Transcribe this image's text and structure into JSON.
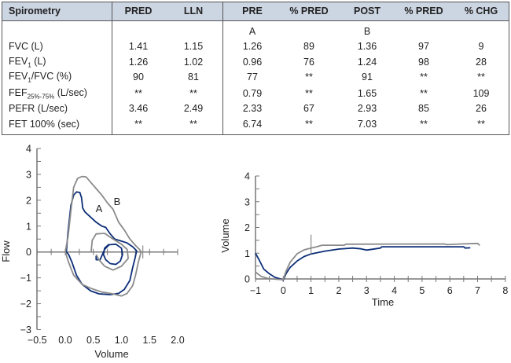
{
  "table": {
    "headers": [
      "Spirometry",
      "PRED",
      "LLN",
      "PRE",
      "% PRED",
      "POST",
      "% PRED",
      "% CHG"
    ],
    "curve_labels": {
      "pre": "A",
      "post": "B"
    },
    "rows": [
      {
        "label": "FVC (L)",
        "values": [
          "1.41",
          "1.15",
          "1.26",
          "89",
          "1.36",
          "97",
          "9"
        ]
      },
      {
        "label_main": "FEV",
        "label_sub": "1",
        "label_rest": " (L)",
        "values": [
          "1.26",
          "1.02",
          "0.96",
          "76",
          "1.24",
          "98",
          "28"
        ]
      },
      {
        "label_main": "FEV",
        "label_sub": "1",
        "label_rest": "/FVC (%)",
        "values": [
          "90",
          "81",
          "77",
          "**",
          "91",
          "**",
          "**"
        ]
      },
      {
        "label_main": "FEF",
        "label_sub": "25%-75%",
        "label_rest": " (L/sec)",
        "values": [
          "**",
          "**",
          "0.79",
          "**",
          "1.65",
          "**",
          "109"
        ]
      },
      {
        "label": "PEFR (L/sec)",
        "values": [
          "3.46",
          "2.49",
          "2.33",
          "67",
          "2.93",
          "85",
          "26"
        ]
      },
      {
        "label": "FET 100% (sec)",
        "values": [
          "**",
          "**",
          "6.74",
          "**",
          "7.03",
          "**",
          "**"
        ]
      }
    ]
  },
  "chart_data": [
    {
      "type": "line",
      "xlabel": "Volume",
      "ylabel": "Flow",
      "xlim": [
        -0.5,
        2.0
      ],
      "ylim": [
        -3,
        4
      ],
      "xticks": [
        "-0.5",
        "0.0",
        "0.5",
        "1.0",
        "1.5",
        "2.0"
      ],
      "yticks": [
        "-3",
        "-2",
        "-1",
        "0",
        "1",
        "2",
        "3",
        "4"
      ],
      "annotations": [
        "A",
        "B"
      ],
      "series": [
        {
          "name": "A",
          "color": "#0d2e78",
          "points": [
            [
              0.02,
              0
            ],
            [
              0.05,
              0.8
            ],
            [
              0.1,
              1.8
            ],
            [
              0.15,
              2.2
            ],
            [
              0.2,
              2.32
            ],
            [
              0.26,
              2.3
            ],
            [
              0.29,
              2.1
            ],
            [
              0.31,
              1.7
            ],
            [
              0.35,
              1.55
            ],
            [
              0.45,
              1.35
            ],
            [
              0.55,
              1.15
            ],
            [
              0.65,
              1.0
            ],
            [
              0.72,
              0.95
            ],
            [
              0.8,
              0.7
            ],
            [
              0.88,
              0.5
            ],
            [
              1.0,
              0.42
            ],
            [
              1.1,
              0.35
            ],
            [
              1.2,
              0.2
            ],
            [
              1.27,
              0.05
            ],
            [
              1.24,
              -0.25
            ],
            [
              1.2,
              -0.6
            ],
            [
              1.15,
              -1.1
            ],
            [
              1.05,
              -1.45
            ],
            [
              0.95,
              -1.6
            ],
            [
              0.8,
              -1.65
            ],
            [
              0.6,
              -1.62
            ],
            [
              0.45,
              -1.5
            ],
            [
              0.3,
              -1.25
            ],
            [
              0.2,
              -0.9
            ],
            [
              0.12,
              -0.4
            ],
            [
              0.06,
              -0.1
            ],
            [
              0.02,
              0
            ]
          ]
        },
        {
          "name": "A-tidal",
          "color": "#0d2e78",
          "points": [
            [
              0.55,
              -0.15
            ],
            [
              0.55,
              -0.3
            ],
            [
              0.62,
              -0.3
            ],
            [
              0.66,
              -0.1
            ],
            [
              0.7,
              0.1
            ],
            [
              0.78,
              0.28
            ],
            [
              0.9,
              0.3
            ],
            [
              1.0,
              0.15
            ],
            [
              1.02,
              -0.1
            ],
            [
              0.98,
              -0.35
            ],
            [
              0.9,
              -0.48
            ],
            [
              0.8,
              -0.45
            ],
            [
              0.72,
              -0.3
            ],
            [
              0.68,
              -0.1
            ],
            [
              0.7,
              0.15
            ],
            [
              0.78,
              0.3
            ]
          ]
        },
        {
          "name": "B",
          "color": "#8a8a8a",
          "points": [
            [
              0.0,
              0
            ],
            [
              0.05,
              0.6
            ],
            [
              0.1,
              1.6
            ],
            [
              0.15,
              2.5
            ],
            [
              0.22,
              2.85
            ],
            [
              0.3,
              2.92
            ],
            [
              0.37,
              2.9
            ],
            [
              0.45,
              2.7
            ],
            [
              0.55,
              2.45
            ],
            [
              0.65,
              2.2
            ],
            [
              0.75,
              1.9
            ],
            [
              0.85,
              1.65
            ],
            [
              0.95,
              1.15
            ],
            [
              1.05,
              0.85
            ],
            [
              1.15,
              0.5
            ],
            [
              1.25,
              0.25
            ],
            [
              1.32,
              0.1
            ],
            [
              1.35,
              0
            ],
            [
              1.3,
              -0.4
            ],
            [
              1.25,
              -0.9
            ],
            [
              1.2,
              -1.3
            ],
            [
              1.1,
              -1.6
            ],
            [
              1.0,
              -1.7
            ],
            [
              0.85,
              -1.62
            ],
            [
              0.65,
              -1.55
            ],
            [
              0.45,
              -1.4
            ],
            [
              0.3,
              -1.25
            ],
            [
              0.15,
              -0.9
            ],
            [
              0.06,
              -0.4
            ],
            [
              0.0,
              0
            ]
          ]
        },
        {
          "name": "B-tidal",
          "color": "#8a8a8a",
          "points": [
            [
              0.46,
              0
            ],
            [
              0.48,
              0.45
            ],
            [
              0.55,
              0.7
            ],
            [
              0.7,
              0.72
            ],
            [
              0.85,
              0.5
            ],
            [
              1.0,
              0.3
            ],
            [
              1.1,
              0.1
            ],
            [
              1.12,
              -0.25
            ],
            [
              1.0,
              -0.55
            ],
            [
              0.85,
              -0.7
            ],
            [
              0.7,
              -0.55
            ],
            [
              0.6,
              -0.3
            ],
            [
              0.55,
              -0.1
            ]
          ]
        }
      ]
    },
    {
      "type": "line",
      "xlabel": "Time",
      "ylabel": "Volume",
      "xlim": [
        -1,
        8
      ],
      "ylim": [
        0,
        4
      ],
      "xticks": [
        "−1",
        "0",
        "1",
        "2",
        "3",
        "4",
        "5",
        "6",
        "7",
        "8"
      ],
      "yticks": [
        "0",
        "1",
        "2",
        "3",
        "4"
      ],
      "series": [
        {
          "name": "A",
          "color": "#0d2e78",
          "points": [
            [
              -1,
              1.0
            ],
            [
              -0.85,
              0.7
            ],
            [
              -0.7,
              0.38
            ],
            [
              -0.5,
              0.2
            ],
            [
              -0.3,
              0.06
            ],
            [
              -0.1,
              0
            ],
            [
              0,
              -0.05
            ],
            [
              0.1,
              0.2
            ],
            [
              0.25,
              0.45
            ],
            [
              0.5,
              0.7
            ],
            [
              0.75,
              0.87
            ],
            [
              1,
              0.97
            ],
            [
              1.5,
              1.08
            ],
            [
              2,
              1.16
            ],
            [
              2.5,
              1.2
            ],
            [
              2.8,
              1.17
            ],
            [
              3,
              1.12
            ],
            [
              3.2,
              1.15
            ],
            [
              3.5,
              1.2
            ],
            [
              3.55,
              1.25
            ],
            [
              6.5,
              1.25
            ],
            [
              6.55,
              1.2
            ],
            [
              6.74,
              1.21
            ]
          ]
        },
        {
          "name": "B",
          "color": "#8a8a8a",
          "points": [
            [
              -1,
              0.27
            ],
            [
              -0.8,
              0.1
            ],
            [
              -0.6,
              0.03
            ],
            [
              -0.4,
              0
            ],
            [
              0,
              -0.03
            ],
            [
              0.1,
              0.3
            ],
            [
              0.25,
              0.65
            ],
            [
              0.5,
              0.98
            ],
            [
              0.75,
              1.13
            ],
            [
              1,
              1.2
            ],
            [
              1.2,
              1.25
            ],
            [
              1.4,
              1.31
            ],
            [
              2.2,
              1.31
            ],
            [
              2.25,
              1.35
            ],
            [
              5.8,
              1.36
            ],
            [
              5.9,
              1.33
            ],
            [
              6.4,
              1.36
            ],
            [
              7,
              1.38
            ],
            [
              7.08,
              1.3
            ]
          ]
        }
      ]
    }
  ]
}
